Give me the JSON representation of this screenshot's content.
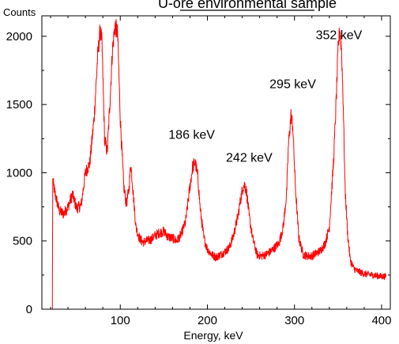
{
  "chart_data": {
    "type": "line",
    "title": "U-ore environmental sample",
    "xlabel": "Energy, keV",
    "ylabel": "Counts",
    "xlim": [
      10,
      410
    ],
    "ylim": [
      0,
      2150
    ],
    "x_ticks": [
      100,
      200,
      300,
      400
    ],
    "x_tick_labels": [
      "100",
      "200",
      "300",
      "400"
    ],
    "y_ticks": [
      0,
      500,
      1000,
      1500,
      2000
    ],
    "y_tick_labels": [
      "0",
      "500",
      "1000",
      "1500",
      "2000"
    ],
    "grid": false,
    "legend": "none",
    "series_color": "#ff0000",
    "series": [
      {
        "x": [
          10,
          18,
          20,
          22,
          22.5,
          25,
          30,
          35,
          40,
          45,
          50,
          55,
          60,
          65,
          70,
          74,
          77,
          79,
          82,
          85,
          88,
          91,
          94,
          97,
          100,
          104,
          107,
          110,
          112,
          115,
          118,
          122,
          126,
          130,
          135,
          140,
          145,
          150,
          155,
          160,
          165,
          170,
          175,
          180,
          183,
          186,
          189,
          192,
          196,
          200,
          205,
          210,
          215,
          220,
          225,
          230,
          235,
          238,
          241,
          243,
          245,
          248,
          252,
          257,
          262,
          267,
          272,
          277,
          282,
          287,
          291,
          293,
          296,
          298,
          301,
          305,
          310,
          315,
          320,
          325,
          330,
          335,
          340,
          345,
          348,
          350,
          352,
          354,
          356,
          358,
          361,
          364,
          368,
          372,
          380,
          390,
          400,
          405
        ],
        "y": [
          0,
          0,
          0,
          0,
          940,
          850,
          720,
          700,
          750,
          840,
          740,
          760,
          1000,
          1070,
          1400,
          1850,
          2050,
          1950,
          1250,
          1150,
          1500,
          1900,
          2080,
          2020,
          1400,
          900,
          770,
          880,
          1070,
          840,
          600,
          520,
          490,
          500,
          510,
          540,
          560,
          570,
          530,
          520,
          500,
          550,
          640,
          900,
          1040,
          1080,
          970,
          720,
          520,
          440,
          400,
          380,
          400,
          420,
          450,
          540,
          680,
          800,
          900,
          910,
          860,
          680,
          520,
          400,
          390,
          400,
          420,
          450,
          480,
          600,
          850,
          1200,
          1420,
          1350,
          900,
          520,
          400,
          390,
          390,
          410,
          430,
          480,
          600,
          1100,
          1550,
          1900,
          2060,
          1900,
          1500,
          900,
          550,
          360,
          300,
          280,
          260,
          250,
          240,
          240
        ]
      }
    ],
    "annotations": [
      {
        "text": "352 keV",
        "x": 351,
        "y": 1980
      },
      {
        "text": "295 keV",
        "x": 298,
        "y": 1620
      },
      {
        "text": "186 keV",
        "x": 182,
        "y": 1250
      },
      {
        "text": "242 keV",
        "x": 248,
        "y": 1080
      }
    ]
  }
}
